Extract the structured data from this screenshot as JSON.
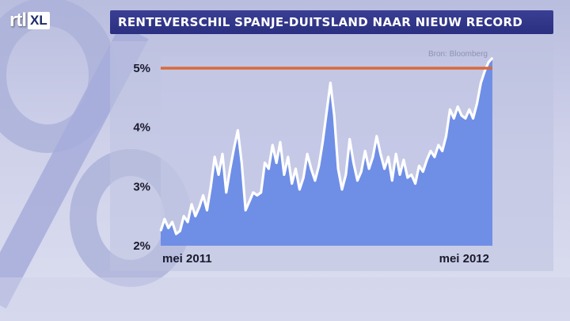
{
  "logo": {
    "text": "rtl",
    "box": "XL"
  },
  "header": {
    "title": "RENTEVERSCHIL SPANJE-DUITSLAND NAAR NIEUW RECORD"
  },
  "colors": {
    "area_fill": "#6f8ee6",
    "line": "#ffffff",
    "record_line": "#d96a3a",
    "title_bar": "#30358a"
  },
  "chart_data": {
    "type": "area",
    "title": "RENTEVERSCHIL SPANJE-DUITSLAND NAAR NIEUW RECORD",
    "source": "Bron: Bloomberg",
    "xlabel": "",
    "ylabel": "",
    "x_tick_labels": [
      "mei 2011",
      "mei 2012"
    ],
    "y_ticks": [
      2,
      3,
      4,
      5
    ],
    "y_tick_labels": [
      "2%",
      "3%",
      "4%",
      "5%"
    ],
    "ylim": [
      2,
      5.2
    ],
    "reference_line": {
      "value": 5.0,
      "color": "#d96a3a"
    },
    "grid": false,
    "series": [
      {
        "values": [
          2.25,
          2.45,
          2.3,
          2.4,
          2.2,
          2.25,
          2.5,
          2.4,
          2.7,
          2.5,
          2.65,
          2.85,
          2.6,
          3.0,
          3.5,
          3.2,
          3.55,
          2.9,
          3.3,
          3.65,
          3.95,
          3.4,
          2.6,
          2.75,
          2.9,
          2.85,
          2.9,
          3.4,
          3.3,
          3.7,
          3.4,
          3.75,
          3.2,
          3.5,
          3.05,
          3.3,
          2.95,
          3.15,
          3.55,
          3.3,
          3.1,
          3.35,
          3.75,
          4.25,
          4.75,
          4.2,
          3.3,
          2.95,
          3.2,
          3.8,
          3.4,
          3.1,
          3.25,
          3.6,
          3.3,
          3.5,
          3.85,
          3.55,
          3.3,
          3.5,
          3.1,
          3.55,
          3.2,
          3.45,
          3.15,
          3.2,
          3.05,
          3.35,
          3.25,
          3.45,
          3.6,
          3.5,
          3.7,
          3.6,
          3.85,
          4.3,
          4.15,
          4.35,
          4.2,
          4.15,
          4.3,
          4.15,
          4.4,
          4.75,
          4.95,
          5.1,
          5.17
        ]
      }
    ]
  }
}
